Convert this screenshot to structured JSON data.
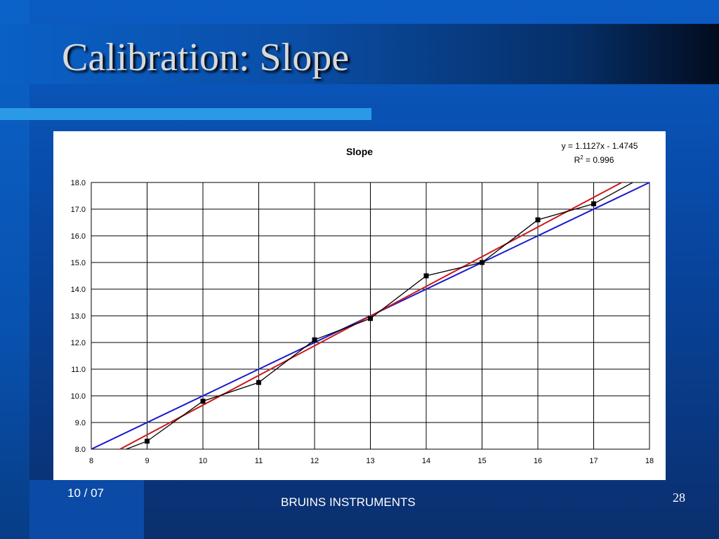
{
  "slide": {
    "title": "Calibration: Slope",
    "footer_left": "10 / 07",
    "footer_center": "BRUINS INSTRUMENTS",
    "page_number": "28"
  },
  "colors": {
    "data_line": "#000000",
    "fit_line": "#cc1a1a",
    "ideal_line": "#1a1acc",
    "grid": "#000000"
  },
  "chart_data": {
    "type": "line",
    "title": "Slope",
    "equation": "y = 1.1127x - 1.4745",
    "r_squared_label": "R",
    "r_squared_sup": "2",
    "r_squared_value": " = 0.996",
    "xlabel": "",
    "ylabel": "",
    "xlim": [
      8,
      18
    ],
    "ylim": [
      8.0,
      18.0
    ],
    "x_ticks": [
      "8",
      "9",
      "10",
      "11",
      "12",
      "13",
      "14",
      "15",
      "16",
      "17",
      "18"
    ],
    "y_ticks": [
      "8.0",
      "9.0",
      "10.0",
      "11.0",
      "12.0",
      "13.0",
      "14.0",
      "15.0",
      "16.0",
      "17.0",
      "18.0"
    ],
    "grid": true,
    "series": [
      {
        "style": "line-with-markers",
        "x": [
          8.5,
          9,
          10,
          11,
          12,
          13,
          14,
          15,
          16,
          17,
          17.7
        ],
        "y": [
          7.9,
          8.3,
          9.8,
          10.5,
          12.1,
          12.9,
          14.5,
          15.0,
          16.6,
          17.2,
          18.0
        ],
        "marker_x": [
          9,
          10,
          11,
          12,
          13,
          14,
          15,
          16,
          17
        ],
        "marker_y": [
          8.3,
          9.8,
          10.5,
          12.1,
          12.9,
          14.5,
          15.0,
          16.6,
          17.2
        ]
      },
      {
        "style": "trendline",
        "slope": 1.1127,
        "intercept": -1.4745
      },
      {
        "style": "reference",
        "slope": 1,
        "intercept": 0
      }
    ]
  }
}
